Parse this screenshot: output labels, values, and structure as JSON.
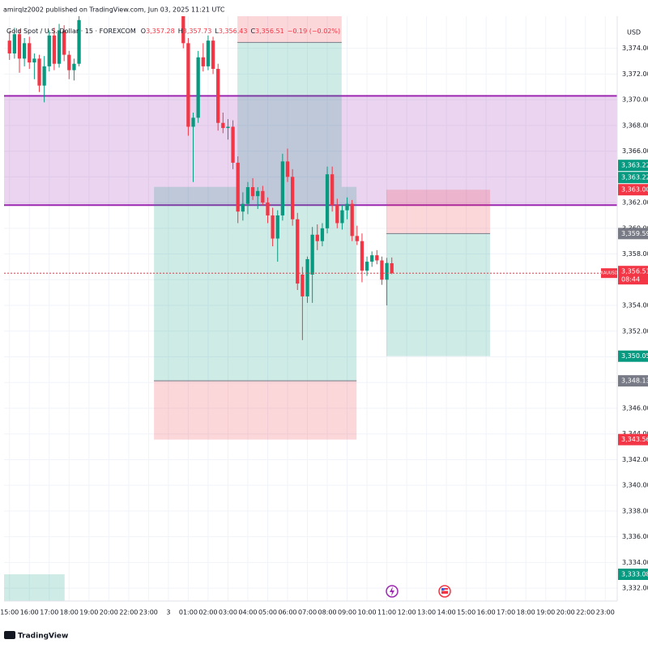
{
  "chart_data": {
    "type": "candlestick",
    "title": "amirqlz2002 published on TradingView.com, Jun 03, 2025 11:21 UTC",
    "symbol": "Gold Spot / U.S. Dollar · 15 · FOREXCOM",
    "ohlc": [
      {
        "key": "O",
        "value": 3357.28,
        "label": "3,357.28"
      },
      {
        "key": "H",
        "value": 3357.73,
        "label": "3,357.73"
      },
      {
        "key": "L",
        "value": 3356.43,
        "label": "3,356.43"
      },
      {
        "key": "C",
        "value": 3356.51,
        "label": "3,356.51"
      }
    ],
    "change": {
      "value": -0.19,
      "label": "−0.19 (−0.02%)"
    },
    "currency": "USD",
    "brand": "TradingView",
    "up_color": "#089981",
    "down_color": "#f23645",
    "x": [
      0,
      1,
      2,
      3,
      4,
      5,
      6,
      7,
      8,
      9,
      10,
      11,
      12,
      13,
      14,
      35,
      36,
      37,
      38,
      39,
      40,
      41,
      42,
      43,
      44,
      45,
      46,
      47,
      48,
      49,
      50,
      51,
      52,
      53,
      54,
      55,
      56,
      57,
      58,
      59,
      60,
      61,
      62,
      63,
      64,
      65,
      66,
      67,
      68,
      69,
      70,
      71,
      72,
      73,
      74,
      75,
      76,
      77
    ],
    "open": [
      3374.6,
      3373.6,
      3375.1,
      3373.2,
      3374.4,
      3372.9,
      3373.2,
      3371.1,
      3372.6,
      3375.0,
      3372.8,
      3375.4,
      3373.5,
      3372.3,
      3372.8,
      3376.9,
      3374.4,
      3367.9,
      3368.6,
      3373.3,
      3372.6,
      3374.6,
      3372.4,
      3368.2,
      3367.8,
      3367.9,
      3365.1,
      3361.3,
      3361.9,
      3363.2,
      3362.5,
      3362.9,
      3362.0,
      3361.0,
      3359.2,
      3361.0,
      3365.2,
      3364.0,
      3360.7,
      3356.4,
      3354.7,
      3356.4,
      3359.5,
      3359.0,
      3360.0,
      3364.2,
      3361.8,
      3360.4,
      3361.4,
      3361.9,
      3359.4,
      3359.0,
      3356.7,
      3357.4,
      3357.9,
      3357.5,
      3356.0,
      3357.28
    ],
    "high": [
      3375.3,
      3375.6,
      3375.5,
      3374.8,
      3374.9,
      3373.6,
      3373.5,
      3373.4,
      3375.4,
      3375.6,
      3375.9,
      3375.8,
      3373.8,
      3373.2,
      3376.5,
      3377.2,
      3374.8,
      3369.0,
      3373.8,
      3374.4,
      3375.0,
      3374.9,
      3372.8,
      3369.0,
      3368.5,
      3368.4,
      3365.6,
      3362.8,
      3363.6,
      3363.9,
      3363.2,
      3363.3,
      3362.4,
      3361.6,
      3361.4,
      3365.8,
      3366.2,
      3364.6,
      3361.2,
      3357.0,
      3357.8,
      3360.1,
      3360.3,
      3360.4,
      3364.8,
      3364.8,
      3362.3,
      3361.8,
      3362.4,
      3362.2,
      3360.2,
      3359.6,
      3357.8,
      3358.2,
      3358.3,
      3357.8,
      3357.7,
      3357.73
    ],
    "low": [
      3373.1,
      3373.2,
      3372.1,
      3372.6,
      3372.4,
      3371.6,
      3370.6,
      3369.8,
      3372.2,
      3372.3,
      3372.5,
      3373.0,
      3371.6,
      3371.5,
      3372.6,
      3374.0,
      3367.2,
      3363.6,
      3368.2,
      3372.2,
      3372.3,
      3372.0,
      3367.6,
      3367.4,
      3366.9,
      3364.6,
      3360.4,
      3360.6,
      3361.1,
      3362.2,
      3361.5,
      3361.8,
      3360.4,
      3358.6,
      3357.4,
      3360.6,
      3363.6,
      3360.2,
      3355.2,
      3351.3,
      3354.2,
      3354.2,
      3358.3,
      3358.6,
      3359.6,
      3361.3,
      3360.0,
      3359.9,
      3360.7,
      3359.0,
      3358.7,
      3355.8,
      3356.3,
      3357.0,
      3357.2,
      3355.6,
      3354.0,
      3356.43
    ],
    "close": [
      3373.6,
      3375.1,
      3373.2,
      3374.4,
      3372.9,
      3373.2,
      3371.1,
      3372.6,
      3375.0,
      3372.8,
      3375.4,
      3373.5,
      3372.3,
      3372.8,
      3376.2,
      3374.4,
      3367.9,
      3368.6,
      3373.3,
      3372.6,
      3374.6,
      3372.4,
      3368.2,
      3367.8,
      3367.9,
      3365.1,
      3361.3,
      3361.9,
      3363.2,
      3362.5,
      3362.9,
      3362.0,
      3361.0,
      3359.2,
      3361.0,
      3365.2,
      3364.0,
      3360.7,
      3355.7,
      3354.7,
      3357.6,
      3359.5,
      3359.0,
      3360.0,
      3364.2,
      3361.8,
      3360.4,
      3361.4,
      3361.9,
      3359.4,
      3359.0,
      3356.7,
      3357.4,
      3357.9,
      3357.5,
      3356.0,
      3357.3,
      3356.51
    ],
    "xlim": [
      -1.1,
      122.4
    ],
    "xticks": [
      {
        "value": 0,
        "label": "15:00"
      },
      {
        "value": 4,
        "label": "16:00"
      },
      {
        "value": 8,
        "label": "17:00"
      },
      {
        "value": 12,
        "label": "18:00"
      },
      {
        "value": 16,
        "label": "19:00"
      },
      {
        "value": 20,
        "label": "20:00"
      },
      {
        "value": 24,
        "label": "22:00"
      },
      {
        "value": 28,
        "label": "23:00"
      },
      {
        "value": 32,
        "label": "3"
      },
      {
        "value": 36,
        "label": "01:00"
      },
      {
        "value": 40,
        "label": "02:00"
      },
      {
        "value": 44,
        "label": "03:00"
      },
      {
        "value": 48,
        "label": "04:00"
      },
      {
        "value": 52,
        "label": "05:00"
      },
      {
        "value": 56,
        "label": "06:00"
      },
      {
        "value": 60,
        "label": "07:00"
      },
      {
        "value": 64,
        "label": "08:00"
      },
      {
        "value": 68,
        "label": "09:00"
      },
      {
        "value": 72,
        "label": "10:00"
      },
      {
        "value": 76,
        "label": "11:00"
      },
      {
        "value": 80,
        "label": "12:00"
      },
      {
        "value": 84,
        "label": "13:00"
      },
      {
        "value": 88,
        "label": "14:00"
      },
      {
        "value": 92,
        "label": "15:00"
      },
      {
        "value": 96,
        "label": "16:00"
      },
      {
        "value": 100,
        "label": "17:00"
      },
      {
        "value": 104,
        "label": "18:00"
      },
      {
        "value": 108,
        "label": "19:00"
      },
      {
        "value": 112,
        "label": "20:00"
      },
      {
        "value": 116,
        "label": "22:00"
      },
      {
        "value": 120,
        "label": "23:00"
      }
    ],
    "ylim": [
      3331,
      3376.5
    ],
    "yticks": [
      {
        "value": 3332,
        "label": "3,332.00"
      },
      {
        "value": 3334,
        "label": "3,334.00"
      },
      {
        "value": 3336,
        "label": "3,336.00"
      },
      {
        "value": 3338,
        "label": "3,338.00"
      },
      {
        "value": 3340,
        "label": "3,340.00"
      },
      {
        "value": 3342,
        "label": "3,342.00"
      },
      {
        "value": 3344,
        "label": "3,344.00"
      },
      {
        "value": 3346,
        "label": "3,346.00"
      },
      {
        "value": 3348,
        "label": "3,348.00"
      },
      {
        "value": 3350,
        "label": "3,350.00"
      },
      {
        "value": 3352,
        "label": "3,352.00"
      },
      {
        "value": 3354,
        "label": "3,354.00"
      },
      {
        "value": 3356,
        "label": "3,356.00"
      },
      {
        "value": 3358,
        "label": "3,358.00"
      },
      {
        "value": 3360,
        "label": "3,360.00"
      },
      {
        "value": 3362,
        "label": "3,362.00"
      },
      {
        "value": 3364,
        "label": "3,364.00"
      },
      {
        "value": 3366,
        "label": "3,366.00"
      },
      {
        "value": 3368,
        "label": "3,368.00"
      },
      {
        "value": 3370,
        "label": "3,370.00"
      },
      {
        "value": 3372,
        "label": "3,372.00"
      },
      {
        "value": 3374,
        "label": "3,374.00"
      }
    ],
    "grid": true,
    "zones": [
      {
        "from": 3361.8,
        "to": 3370.3,
        "color": "#9c27b0"
      }
    ],
    "positions": [
      {
        "x": [
          29.1,
          69.9
        ],
        "entry": 3348.13,
        "target": 3363.22,
        "stop": 3343.56
      },
      {
        "x": [
          45.9,
          66.9
        ],
        "entry": 3374.46,
        "target": 3363.22,
        "stop": 3376.9
      },
      {
        "x": [
          75.9,
          96.8
        ],
        "entry": 3359.59,
        "target": 3350.05,
        "stop": 3363
      },
      {
        "x": [
          -1.1,
          11.1
        ],
        "entry": 3330.5,
        "target": 3333.08
      }
    ],
    "price_labels": [
      {
        "value": 3363.22,
        "label": "3,363.22",
        "color": "#089981"
      },
      {
        "value": 3363.22,
        "label": "3,363.22",
        "color": "#089981"
      },
      {
        "value": 3363,
        "label": "3,363.00",
        "color": "#f23645"
      },
      {
        "value": 3359.59,
        "label": "3,359.59",
        "color": "#787b86"
      },
      {
        "value": 3350.05,
        "label": "3,350.05",
        "color": "#089981"
      },
      {
        "value": 3348.13,
        "label": "3,348.13",
        "color": "#787b86"
      },
      {
        "value": 3343.56,
        "label": "3,343.56",
        "color": "#f23645"
      },
      {
        "value": 3333.08,
        "label": "3,333.08",
        "color": "#089981"
      }
    ],
    "last_price": {
      "value": 3356.51,
      "label": "3,356.51",
      "symbol": "XAUUSD",
      "countdown": "08:44",
      "color": "#f23645"
    }
  }
}
